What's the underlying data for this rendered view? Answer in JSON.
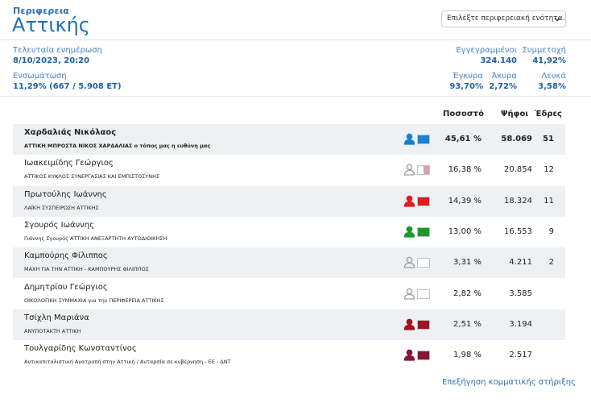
{
  "header": {
    "kicker": "Περιφερεια",
    "title": "Αττικής",
    "select_placeholder": "Επιλέξτε περιφερειακή ενότητα..."
  },
  "stats": {
    "updated_label": "Τελευταία ενημέρωση",
    "updated_value": "8/10/2023, 20:20",
    "integration_label": "Ενσωμάτωση",
    "integration_pct": "11,29%",
    "integration_detail": "(667 / 5.908 ΕΤ)",
    "registered_label": "Εγγεγραμμένοι",
    "registered_value": "324.140",
    "turnout_label": "Συμμετοχή",
    "turnout_value": "41,92%",
    "valid_label": "Έγκυρα",
    "valid_value": "93,70%",
    "invalid_label": "Άκυρα",
    "invalid_value": "2,72%",
    "blank_label": "Λευκά",
    "blank_value": "3,58%"
  },
  "columns": {
    "pct": "Ποσοστό",
    "votes": "Ψήφοι",
    "seats": "Έδρες"
  },
  "candidates": [
    {
      "name": "Χαρδαλιάς Νικόλαος",
      "party": "ΑΤΤΙΚΗ ΜΠΡΟΣΤΑ ΝΙΚΟΣ ΧΑΡΔΑΛΙΑΣ ο τόπος μας η ευθύνη μας",
      "pct": "45,61 %",
      "votes": "58.069",
      "seats": "51",
      "color": "#1a80d0",
      "icon_color": "#1a80d0"
    },
    {
      "name": "Ιωακειμίδης Γεώργιος",
      "party": "ΑΤΤΙΚΟΣ ΚΥΚΛΟΣ ΣΥΝΕΡΓΑΣΙΑΣ ΚΑΙ ΕΜΠΙΣΤΟΣΥΝΗΣ",
      "pct": "16,38 %",
      "votes": "20.854",
      "seats": "12",
      "color": "#ffffff",
      "color2": "#d9a0a8",
      "icon_color": "#9aa0a6"
    },
    {
      "name": "Πρωτούλης Ιωάννης",
      "party": "ΛΑΪΚΗ ΣΥΣΠΕΙΡΩΣΗ ΑΤΤΙΚΗΣ",
      "pct": "14,39 %",
      "votes": "18.324",
      "seats": "11",
      "color": "#e21b1b",
      "icon_color": "#e21b1b"
    },
    {
      "name": "Σγουρός Ιωάννης",
      "party": "Γιάννης Σγουρός ΑΤΤΙΚΗ ΑΝΕΞΑΡΤΗΤΗ ΑΥΤΟΔΙΟΙΚΗΣΗ",
      "pct": "13,00 %",
      "votes": "16.553",
      "seats": "9",
      "color": "#1a9a2a",
      "icon_color": "#1a9a2a"
    },
    {
      "name": "Καμπούρης Φίλιππος",
      "party": "ΜΑΧΗ ΓΙΑ ΤΗΝ ΑΤΤΙΚΗ - ΚΑΜΠΟΥΡΗΣ ΦΙΛΙΠΠΟΣ",
      "pct": "3,31 %",
      "votes": "4.211",
      "seats": "2",
      "color": "#ffffff",
      "icon_color": "#9aa0a6"
    },
    {
      "name": "Δημητρίου Γεώργιος",
      "party": "ΟΙΚΟΛΟΓΙΚΗ ΣΥΜΜΑΧΙΑ για την ΠΕΡΙΦΕΡΕΙΑ ΑΤΤΙΚΗΣ",
      "pct": "2,82 %",
      "votes": "3.585",
      "seats": "",
      "color": "#ffffff",
      "icon_color": "#9aa0a6"
    },
    {
      "name": "Τσίχλη Μαριάνα",
      "party": "ΑΝΥΠΟΤΑΚΤΗ ΑΤΤΙΚΗ",
      "pct": "2,51 %",
      "votes": "3.194",
      "seats": "",
      "color": "#a0121e",
      "icon_color": "#a0121e"
    },
    {
      "name": "Τουλγαρίδης Κωνσταντίνος",
      "party": "Αντικαπιταλιστική Ανατροπή στην Αττική / Ανταρσία σε κυβέρνηση - ΕΕ - ΔΝΤ",
      "pct": "1,98 %",
      "votes": "2.517",
      "seats": "",
      "color": "#8b1430",
      "icon_color": "#8b1430"
    }
  ],
  "footer": {
    "link": "Επεξήγηση κομματικής στήριξης"
  }
}
